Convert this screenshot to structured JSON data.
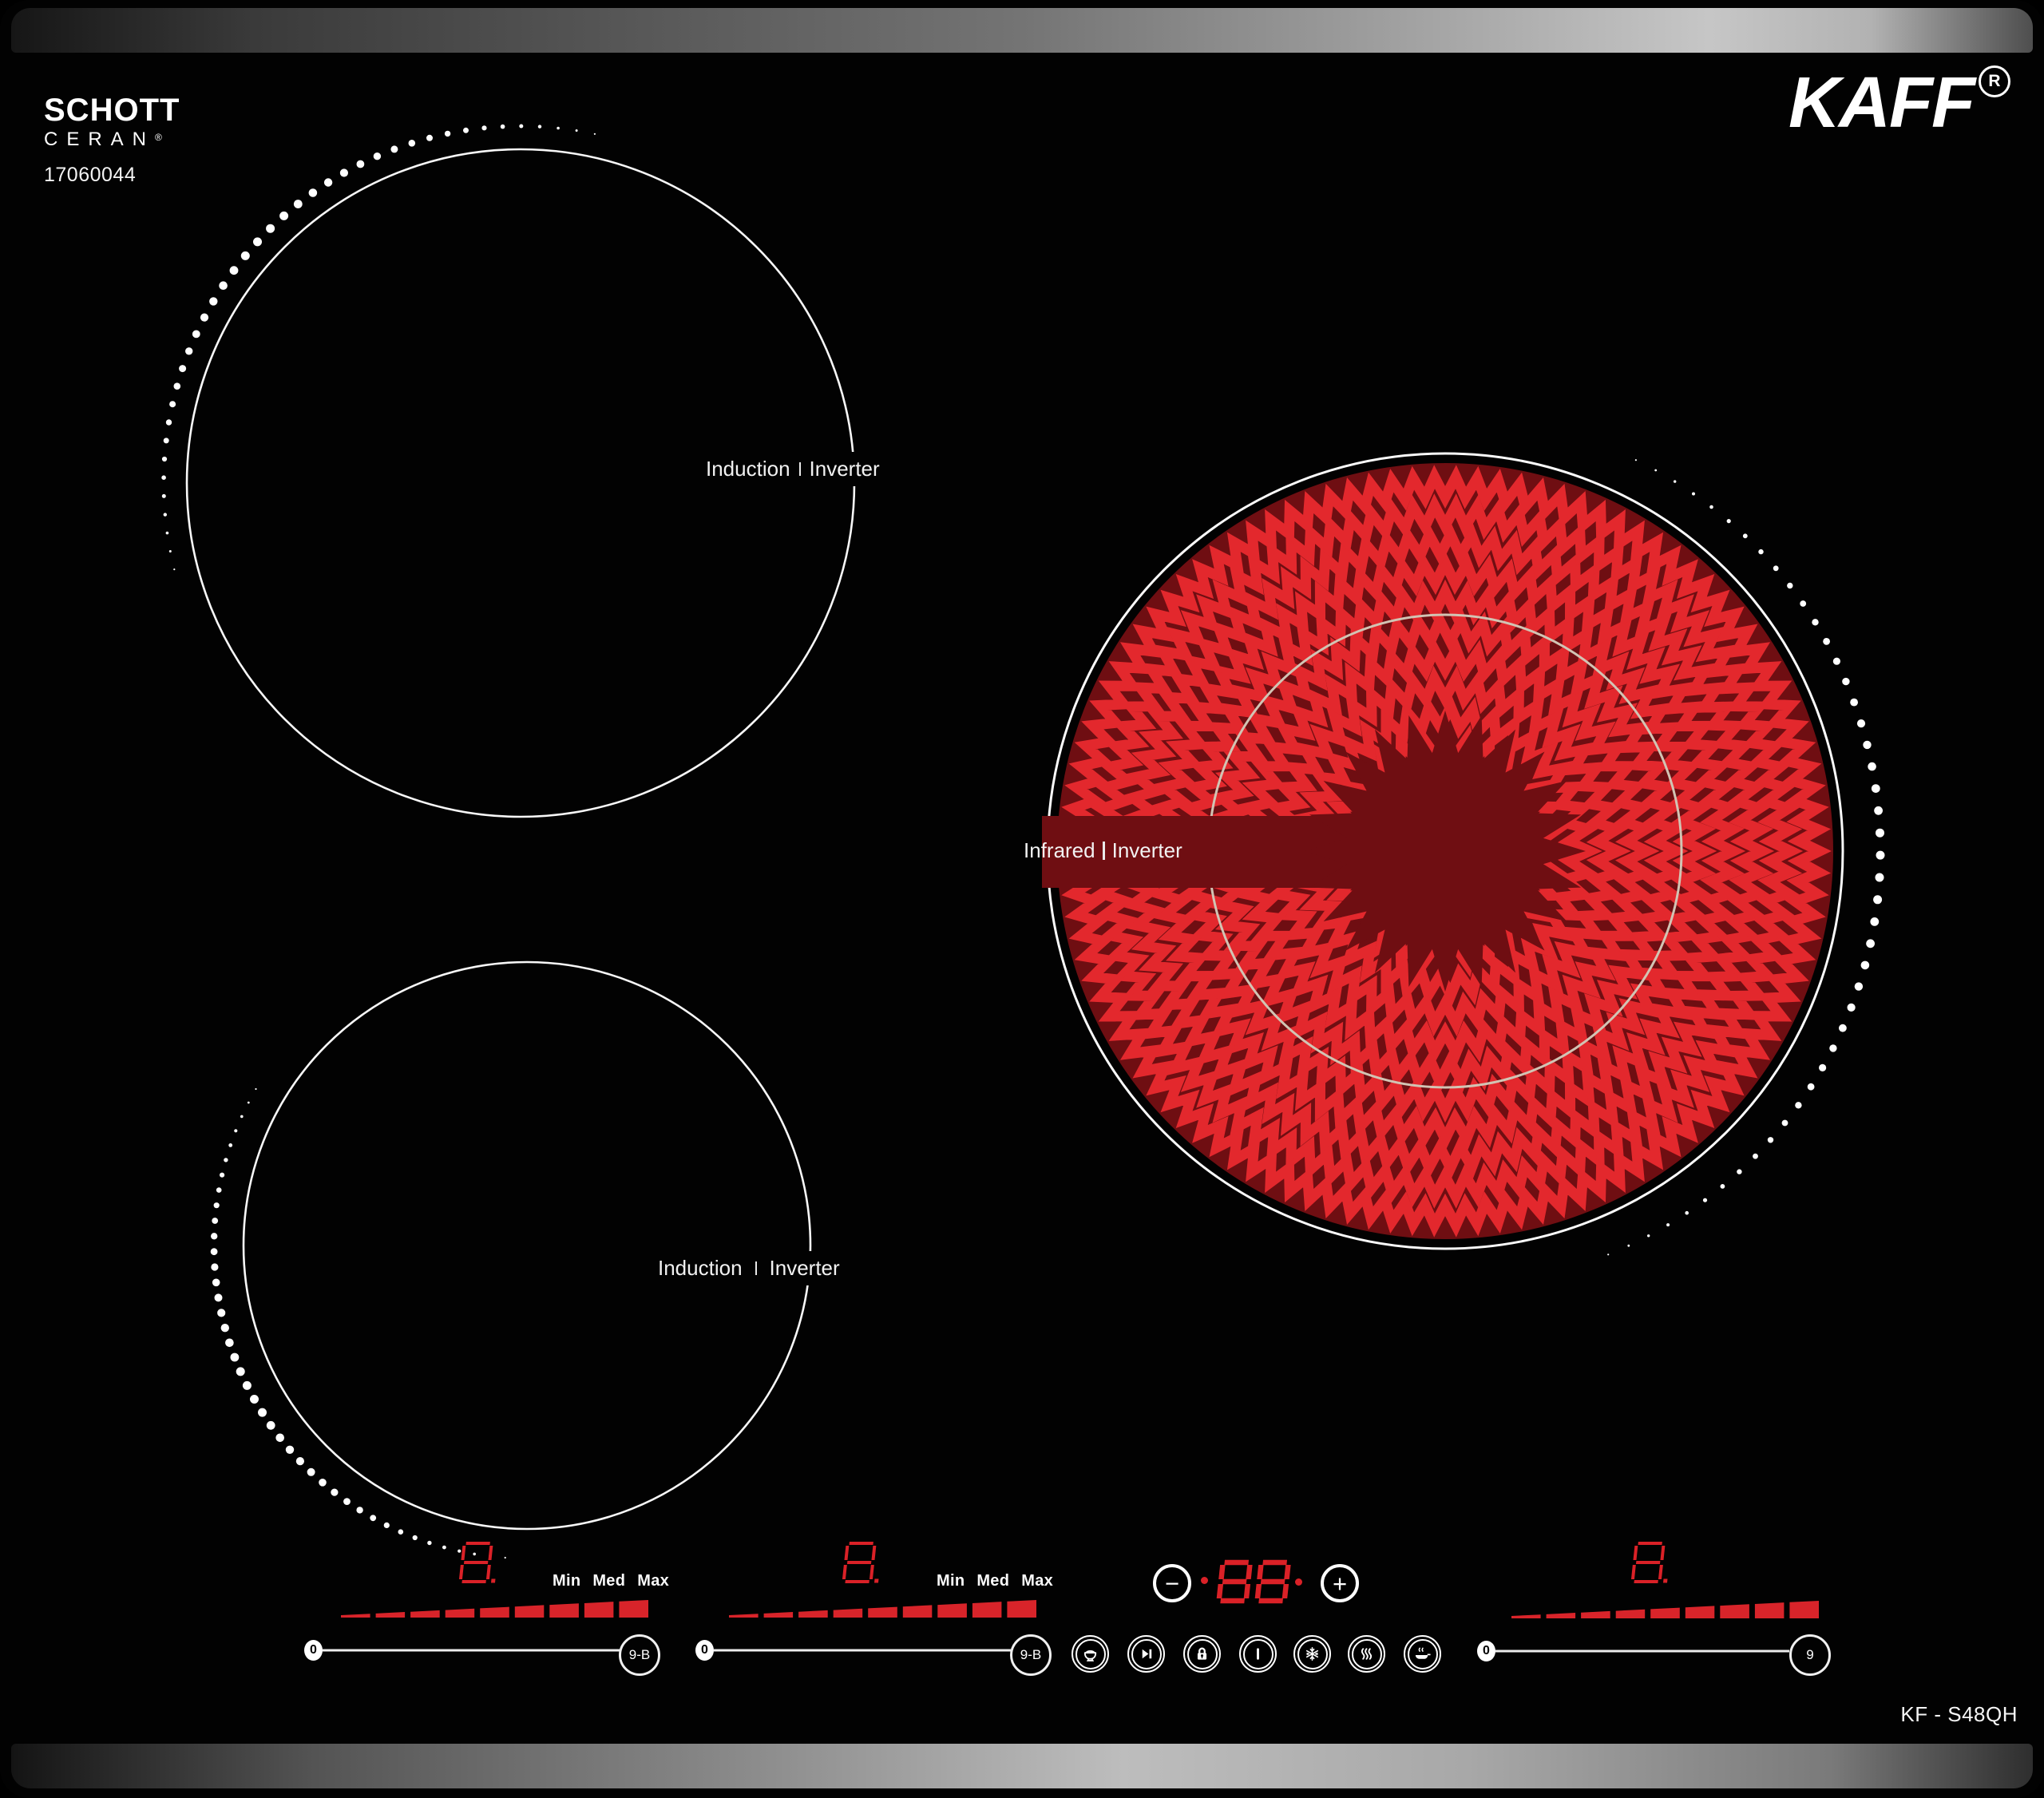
{
  "brand": {
    "schott_line1": "SCHOTT",
    "schott_line2": "CERAN",
    "registered": "®",
    "serial": "17060044",
    "kaff": "KAFF",
    "kaff_reg_letter": "R",
    "model": "KF - S48QH"
  },
  "zones": {
    "induction_top": {
      "left": "Induction",
      "right": "Inverter"
    },
    "induction_bottom": {
      "left": "Induction",
      "right": "Inverter"
    },
    "infrared": {
      "left": "Infrared",
      "right": "Inverter"
    }
  },
  "controls": {
    "left": {
      "display": "8",
      "levels": {
        "min": "Min",
        "med": "Med",
        "max": "Max"
      },
      "slider_start": "0",
      "slider_end": "9-B",
      "ramp_segments": 9
    },
    "middle": {
      "display": "8",
      "levels": {
        "min": "Min",
        "med": "Med",
        "max": "Max"
      },
      "slider_start": "0",
      "slider_end": "9-B",
      "ramp_segments": 9
    },
    "right": {
      "display": "8",
      "slider_start": "0",
      "slider_end": "9",
      "ramp_segments": 9
    },
    "timer": {
      "display": "88",
      "minus": "−",
      "plus": "+"
    },
    "function_icons": [
      "rice-cooker",
      "pause-boost",
      "child-lock",
      "power",
      "defrost",
      "keep-warm",
      "fry-pan"
    ]
  },
  "colors": {
    "glass": "#020202",
    "heater_bright": "#e3282d",
    "heater_dark": "#6f0e12",
    "display_red": "#da2127",
    "ramp_red": "#d8242a",
    "inner_ring": "#d2c4b4",
    "line_white": "#ececec"
  }
}
